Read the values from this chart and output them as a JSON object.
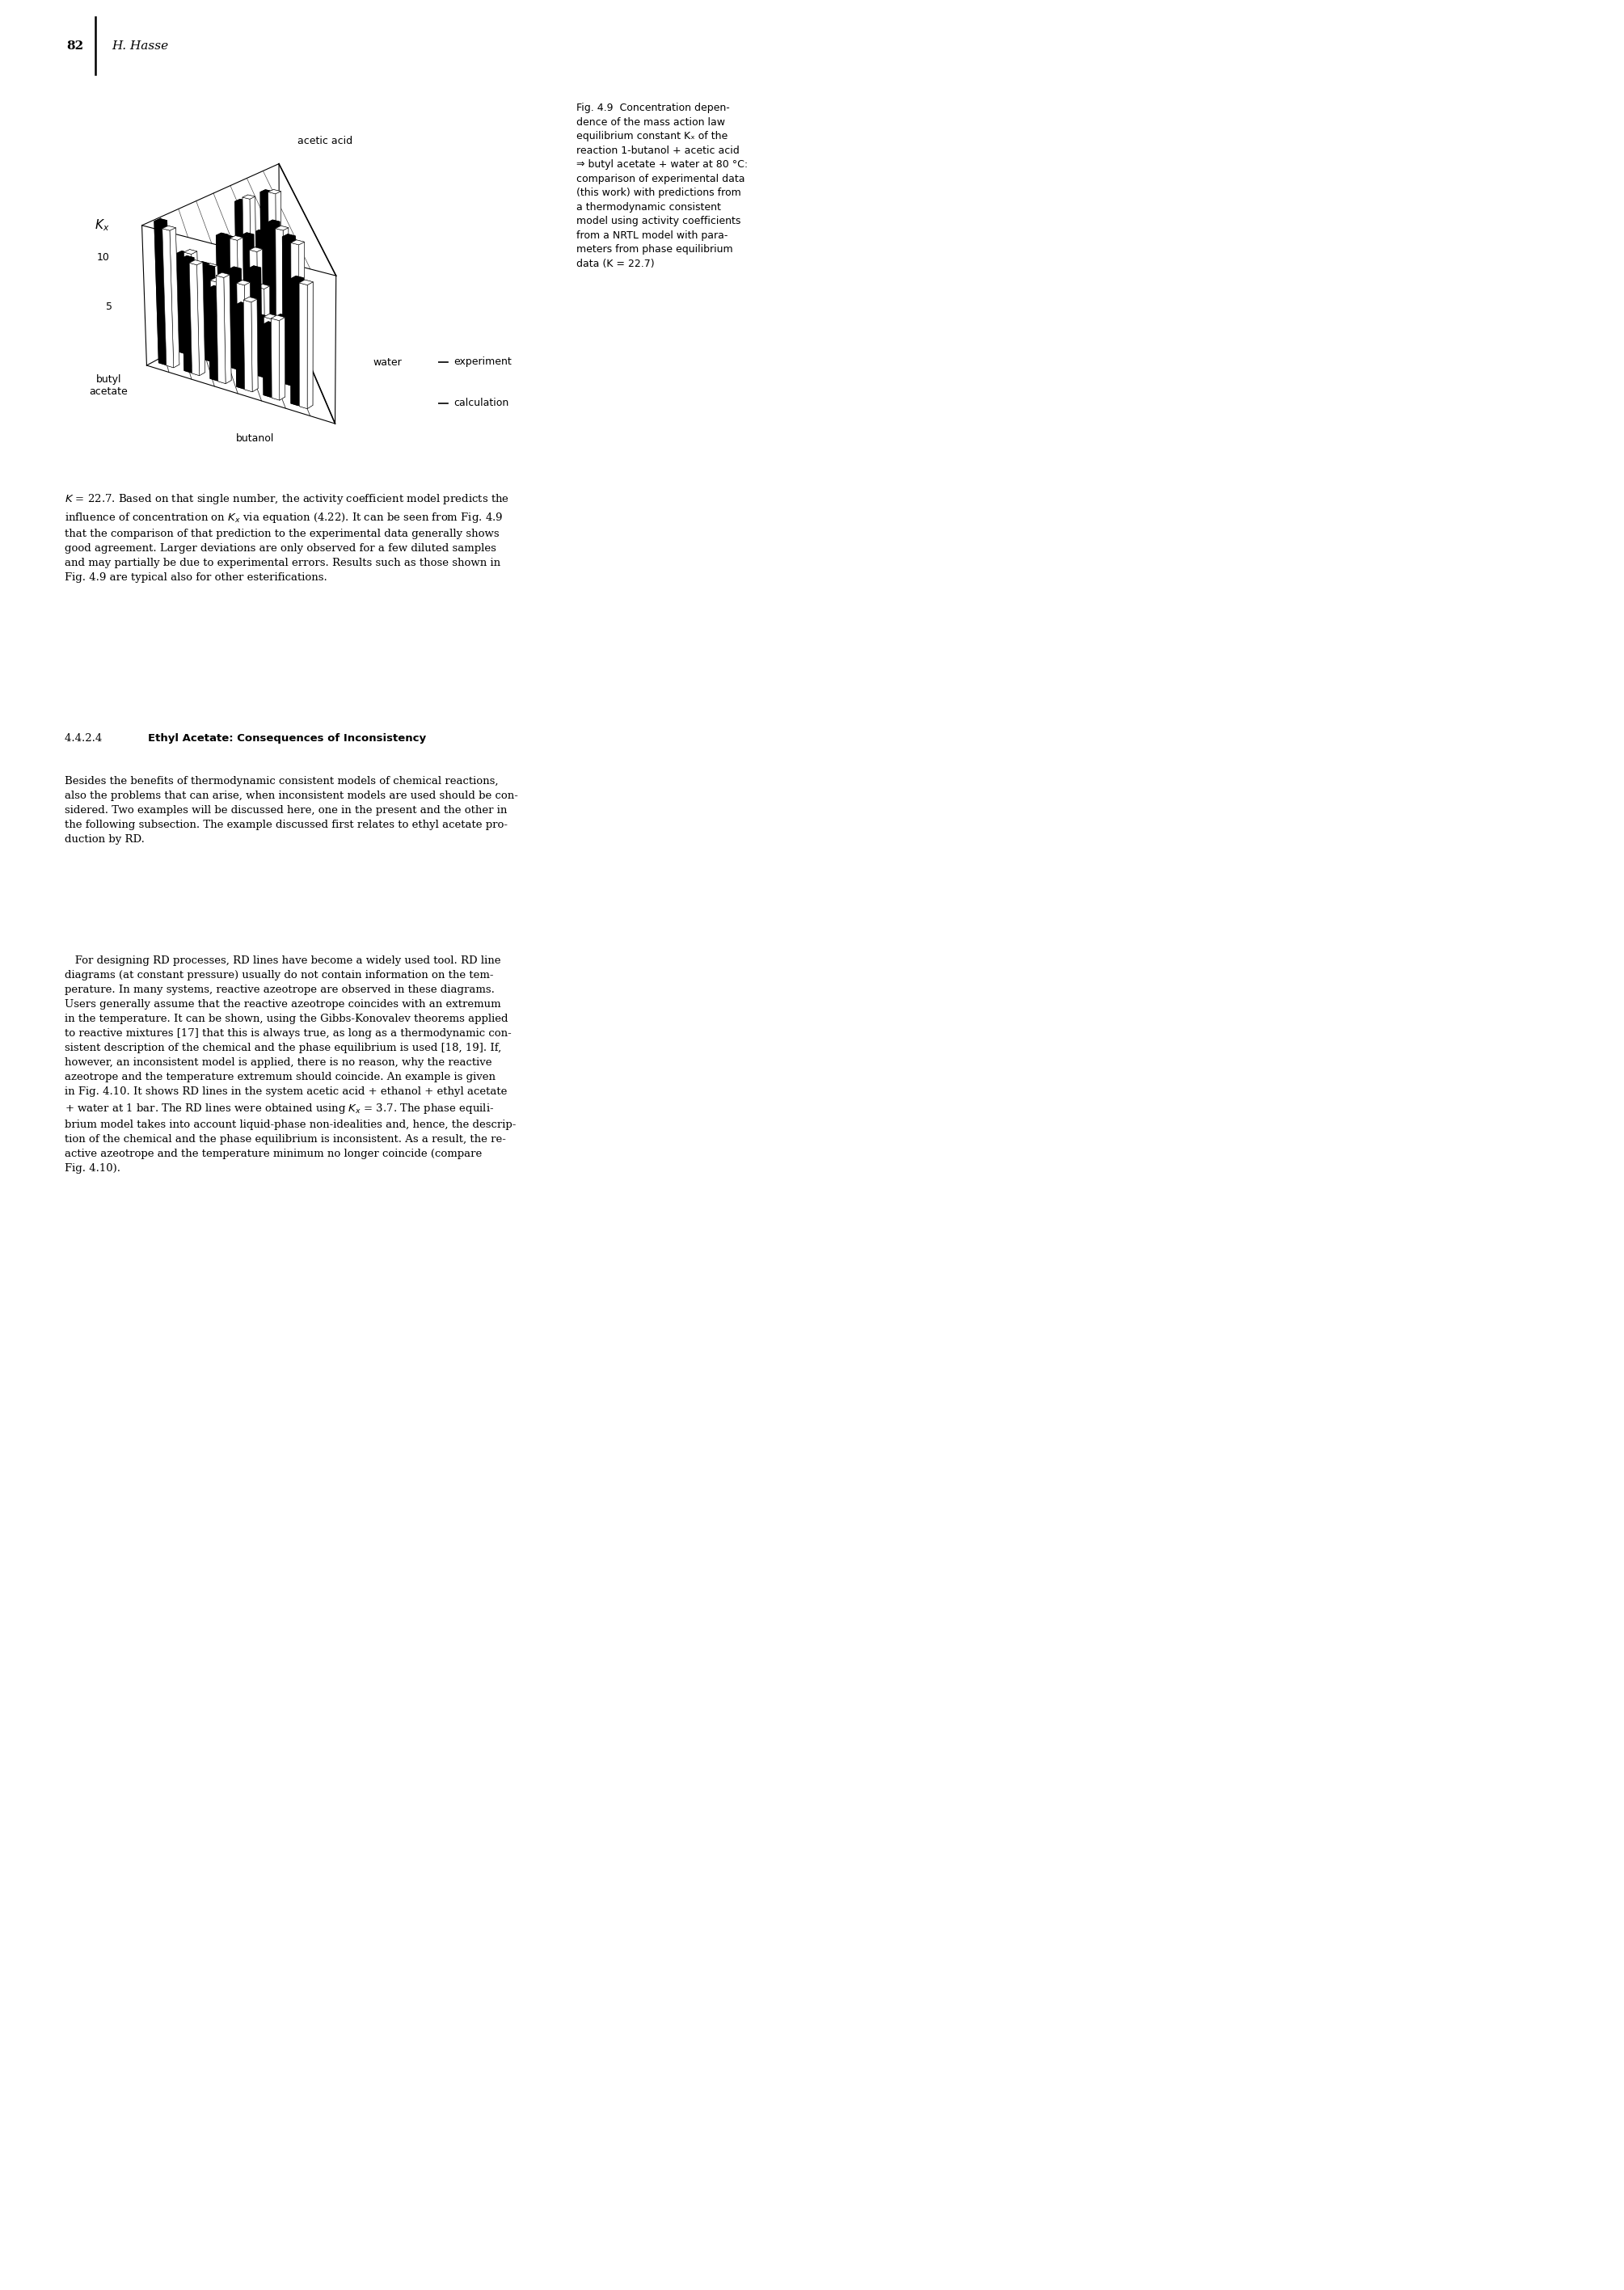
{
  "page_number": "82",
  "page_author": "H. Hasse",
  "axis_label_x": "butanol",
  "axis_label_y_left": "butyl\nacetate",
  "axis_label_y_right": "water",
  "axis_label_top": "acetic acid",
  "axis_label_kx": "K",
  "axis_zticks": [
    5,
    10
  ],
  "legend_experiment": "experiment",
  "legend_calculation": "calculation",
  "background_color": "#ffffff",
  "text_color": "#000000",
  "fig_caption_part1": "Fig. 4.9",
  "fig_caption_rest": "  Concentration depen-\ndence of the mass action law\nequilibrium constant K",
  "fig_caption_rest2": " of the\nreaction 1-butanol + acetic acid\n⇒ butyl acetate + water at 80 °C:\ncomparison of experimental data\n(this work) with predictions from\na thermodynamic consistent\nmodel using activity coefficients\nfrom a NRTL model with para-\nmeters from phase equilibrium\ndata (K = 22.7)",
  "body_intro": "K = 22.7. Based on that single number, the activity coefficient model predicts the\ninfluence of concentration on K",
  "body_intro2": " via equation (4.22). It can be seen from Fig. 4.9\nthat the comparison of that prediction to the experimental data generally shows\ngood agreement. Larger deviations are only observed for a few diluted samples\nand may partially be due to experimental errors. Results such as those shown in\nFig. 4.9 are typical also for other esterifications.",
  "section_number": "4.4.2.4",
  "section_title": "Ethyl Acetate: Consequences of Inconsistency",
  "section_para1": "Besides the benefits of thermodynamic consistent models of chemical reactions,\nalso the problems that can arise, when inconsistent models are used should be con-\nsidered. Two examples will be discussed here, one in the present and the other in\nthe following subsection. The example discussed first relates to ethyl acetate pro-\nduction by RD.",
  "section_para2": "   For designing RD processes, RD lines have become a widely used tool. RD line\ndiagrams (at constant pressure) usually do not contain information on the tem-\nperature. In many systems, reactive azeotrope are observed in these diagrams.\nUsers generally assume that the reactive azeotrope coincides with an extremum\nin the temperature. It can be shown, using the Gibbs-Konovalev theorems applied\nto reactive mixtures [17] that this is always true, as long as a thermodynamic con-\nsistent description of the chemical and the phase equilibrium is used [18, 19]. If,\nhowever, an inconsistent model is applied, there is no reason, why the reactive\nazeotrope and the temperature extremum should coincide. An example is given\nin Fig. 4.10. It shows RD lines in the system acetic acid + ethanol + ethyl acetate\n+ water at 1 bar. The RD lines were obtained using K",
  "section_para2b": " = 3.7. The phase equili-\nbrium model takes into account liquid-phase non-idealities and, hence, the descrip-\ntion of the chemical and the phase equilibrium is inconsistent. As a result, the re-\nactive azeotrope and the temperature minimum no longer coincide (compare\nFig. 4.10)."
}
